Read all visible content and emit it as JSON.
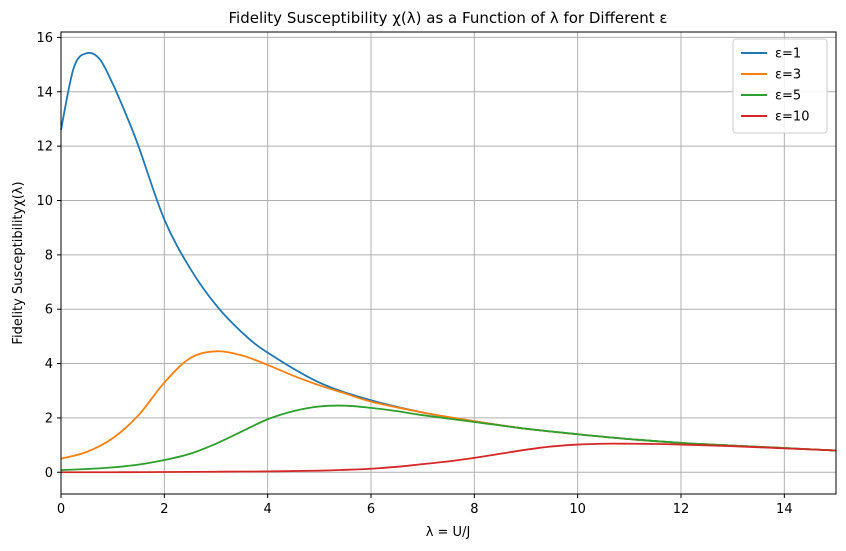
{
  "chart_data": {
    "type": "line",
    "title": "Fidelity Susceptibility χ(λ) as a Function of λ for Different ε",
    "xlabel": "λ = U/J",
    "ylabel": "Fidelity Susceptibilityχ(λ)",
    "xlim": [
      0,
      15
    ],
    "ylim": [
      -0.8,
      16.2
    ],
    "xticks": [
      0,
      2,
      4,
      6,
      8,
      10,
      12,
      14
    ],
    "yticks": [
      0,
      2,
      4,
      6,
      8,
      10,
      12,
      14,
      16
    ],
    "grid": true,
    "legend_position": "top-right",
    "series": [
      {
        "name": "ε=1",
        "color": "#1f77b4",
        "x": [
          0,
          0.25,
          0.5,
          0.75,
          1,
          1.25,
          1.5,
          2,
          2.5,
          3,
          3.5,
          4,
          5,
          6,
          7,
          8,
          9,
          10,
          11,
          12,
          13,
          14,
          15
        ],
        "y": [
          12.6,
          14.9,
          15.42,
          15.2,
          14.3,
          13.2,
          12.0,
          9.3,
          7.5,
          6.15,
          5.15,
          4.4,
          3.3,
          2.65,
          2.2,
          1.88,
          1.6,
          1.4,
          1.22,
          1.08,
          0.98,
          0.89,
          0.8
        ]
      },
      {
        "name": "ε=3",
        "color": "#ff7f0e",
        "x": [
          0,
          0.5,
          1,
          1.5,
          2,
          2.5,
          3,
          3.5,
          4,
          4.5,
          5,
          5.5,
          6,
          7,
          8,
          9,
          10,
          11,
          12,
          13,
          14,
          15
        ],
        "y": [
          0.5,
          0.75,
          1.25,
          2.1,
          3.3,
          4.2,
          4.45,
          4.3,
          3.95,
          3.55,
          3.2,
          2.9,
          2.6,
          2.2,
          1.88,
          1.6,
          1.4,
          1.22,
          1.08,
          0.98,
          0.89,
          0.8
        ]
      },
      {
        "name": "ε=5",
        "color": "#2ca02c",
        "x": [
          0,
          0.5,
          1,
          1.5,
          2,
          2.5,
          3,
          3.5,
          4,
          4.5,
          5,
          5.5,
          6,
          6.5,
          7,
          8,
          9,
          10,
          11,
          12,
          13,
          14,
          15
        ],
        "y": [
          0.08,
          0.12,
          0.18,
          0.28,
          0.45,
          0.68,
          1.05,
          1.5,
          1.95,
          2.25,
          2.42,
          2.45,
          2.37,
          2.25,
          2.1,
          1.85,
          1.6,
          1.4,
          1.22,
          1.08,
          0.98,
          0.89,
          0.8
        ]
      },
      {
        "name": "ε=10",
        "color": "#d62728",
        "x": [
          0,
          1,
          2,
          3,
          4,
          5,
          5.5,
          6,
          6.5,
          7,
          7.5,
          8,
          8.5,
          9,
          9.5,
          10,
          10.5,
          11,
          11.5,
          12,
          13,
          14,
          15
        ],
        "y": [
          0.0,
          0.0,
          0.01,
          0.02,
          0.03,
          0.06,
          0.09,
          0.13,
          0.2,
          0.3,
          0.4,
          0.53,
          0.68,
          0.83,
          0.95,
          1.02,
          1.05,
          1.05,
          1.04,
          1.02,
          0.96,
          0.88,
          0.8
        ]
      }
    ]
  }
}
